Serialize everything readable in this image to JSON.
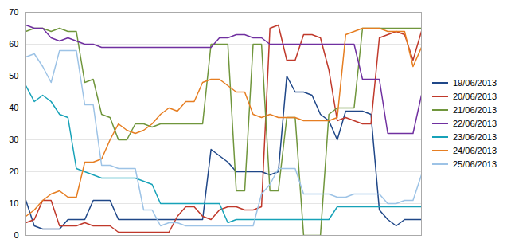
{
  "chart_data": {
    "type": "line",
    "x": [
      0,
      1,
      2,
      3,
      4,
      5,
      6,
      7,
      8,
      9,
      10,
      11,
      12,
      13,
      14,
      15,
      16,
      17,
      18,
      19,
      20,
      21,
      22,
      23,
      24,
      25,
      26,
      27,
      28,
      29,
      30,
      31,
      32,
      33,
      34,
      35,
      36,
      37,
      38,
      39,
      40,
      41,
      42,
      43,
      44,
      45,
      46,
      47
    ],
    "series": [
      {
        "name": "19/06/2013",
        "color": "#1f4788",
        "values": [
          11,
          3,
          2,
          2,
          2,
          5,
          5,
          5,
          11,
          11,
          11,
          5,
          5,
          5,
          5,
          5,
          5,
          5,
          5,
          5,
          5,
          5,
          27,
          25,
          23,
          20,
          20,
          20,
          20,
          19,
          20,
          50,
          45,
          45,
          44,
          38,
          36,
          30,
          39,
          39,
          39,
          38,
          8,
          5,
          3,
          5,
          5,
          5
        ]
      },
      {
        "name": "20/06/2013",
        "color": "#c0392b",
        "values": [
          4,
          5,
          11,
          11,
          3,
          3,
          3,
          4,
          3,
          3,
          3,
          1,
          1,
          1,
          1,
          1,
          1,
          1,
          6,
          9,
          9,
          6,
          5,
          8,
          9,
          9,
          8,
          8,
          9,
          65,
          66,
          55,
          55,
          63,
          63,
          62,
          52,
          36,
          37,
          36,
          35,
          35,
          62,
          63,
          64,
          63,
          55,
          64
        ]
      },
      {
        "name": "21/06/2013",
        "color": "#70963c",
        "values": [
          64,
          65,
          65,
          64,
          65,
          64,
          64,
          48,
          49,
          38,
          37,
          30,
          30,
          35,
          35,
          34,
          35,
          35,
          35,
          35,
          35,
          35,
          60,
          60,
          60,
          14,
          14,
          60,
          60,
          14,
          14,
          37,
          37,
          0,
          0,
          0,
          38,
          40,
          40,
          40,
          65,
          65,
          65,
          65,
          65,
          65,
          65,
          65
        ]
      },
      {
        "name": "22/06/2013",
        "color": "#7030a0",
        "values": [
          66,
          65,
          65,
          62,
          61,
          62,
          61,
          60,
          60,
          59,
          59,
          59,
          59,
          59,
          59,
          59,
          59,
          59,
          59,
          59,
          59,
          59,
          59,
          62,
          62,
          63,
          63,
          62,
          62,
          60,
          60,
          60,
          60,
          60,
          60,
          60,
          60,
          60,
          60,
          60,
          49,
          49,
          49,
          32,
          32,
          32,
          32,
          44
        ]
      },
      {
        "name": "23/06/2013",
        "color": "#17a2b8",
        "values": [
          47,
          42,
          44,
          42,
          38,
          37,
          21,
          20,
          19,
          18,
          18,
          18,
          18,
          18,
          17,
          16,
          10,
          10,
          10,
          10,
          10,
          10,
          10,
          10,
          4,
          5,
          5,
          5,
          5,
          5,
          5,
          5,
          5,
          5,
          5,
          5,
          5,
          9,
          9,
          9,
          9,
          9,
          9,
          9,
          9,
          9,
          9,
          9
        ]
      },
      {
        "name": "24/06/2013",
        "color": "#e67e22",
        "values": [
          6,
          8,
          11,
          13,
          14,
          12,
          12,
          23,
          23,
          24,
          30,
          35,
          33,
          32,
          33,
          35,
          38,
          40,
          39,
          42,
          42,
          48,
          49,
          49,
          47,
          45,
          45,
          38,
          37,
          38,
          37,
          37,
          37,
          36,
          36,
          36,
          36,
          37,
          63,
          64,
          65,
          65,
          65,
          64,
          64,
          64,
          53,
          59
        ]
      },
      {
        "name": "25/06/2013",
        "color": "#9dc3e6",
        "values": [
          56,
          57,
          53,
          48,
          58,
          58,
          58,
          41,
          41,
          22,
          22,
          21,
          21,
          21,
          8,
          8,
          3,
          4,
          4,
          3,
          3,
          3,
          3,
          3,
          3,
          3,
          3,
          3,
          13,
          16,
          21,
          21,
          21,
          13,
          13,
          13,
          13,
          12,
          12,
          13,
          13,
          13,
          13,
          10,
          10,
          11,
          11,
          19
        ]
      }
    ],
    "xlim": [
      0,
      47
    ],
    "ylim": [
      0,
      70
    ],
    "yticks": [
      0,
      10,
      20,
      30,
      40,
      50,
      60,
      70
    ],
    "grid": true,
    "legend": "right",
    "tick_labels": "y"
  }
}
